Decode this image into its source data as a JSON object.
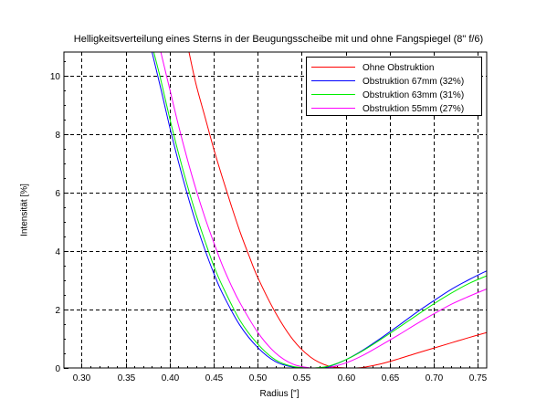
{
  "chart_data": {
    "type": "line",
    "title": "Helligkeitsverteilung eines Sterns in der Beugungsscheibe mit und ohne Fangspiegel (8\" f/6)",
    "xlabel": "Radius [\"]",
    "ylabel": "Intensität [%]",
    "xlim": [
      0.28,
      0.76
    ],
    "ylim": [
      0,
      10.8
    ],
    "xticks": [
      "0.30",
      "0.35",
      "0.40",
      "0.45",
      "0.50",
      "0.55",
      "0.60",
      "0.65",
      "0.70",
      "0.75"
    ],
    "xtick_values": [
      0.3,
      0.35,
      0.4,
      0.45,
      0.5,
      0.55,
      0.6,
      0.65,
      0.7,
      0.75
    ],
    "yticks": [
      "0",
      "2",
      "4",
      "6",
      "8",
      "10"
    ],
    "ytick_values": [
      0,
      2,
      4,
      6,
      8,
      10
    ],
    "grid": true,
    "legend_position": "top-right",
    "series": [
      {
        "name": "Ohne Obstruktion",
        "color": "#ff0000",
        "x": [
          0.422,
          0.43,
          0.44,
          0.45,
          0.46,
          0.47,
          0.48,
          0.49,
          0.5,
          0.52,
          0.54,
          0.56,
          0.58,
          0.6,
          0.61,
          0.62,
          0.64,
          0.66,
          0.68,
          0.7,
          0.72,
          0.74,
          0.76
        ],
        "y": [
          10.8,
          9.7,
          8.6,
          7.5,
          6.5,
          5.55,
          4.65,
          3.85,
          3.1,
          1.9,
          0.97,
          0.37,
          0.07,
          0.0,
          0.0,
          0.02,
          0.14,
          0.31,
          0.5,
          0.68,
          0.86,
          1.04,
          1.21
        ]
      },
      {
        "name": "Obstruktion 67mm (32%)",
        "color": "#0000ff",
        "x": [
          0.38,
          0.39,
          0.4,
          0.41,
          0.42,
          0.43,
          0.44,
          0.45,
          0.46,
          0.48,
          0.5,
          0.52,
          0.54,
          0.56,
          0.57,
          0.58,
          0.6,
          0.62,
          0.64,
          0.66,
          0.68,
          0.7,
          0.72,
          0.74,
          0.76
        ],
        "y": [
          10.8,
          9.55,
          8.25,
          7.05,
          5.95,
          4.95,
          4.05,
          3.25,
          2.55,
          1.45,
          0.7,
          0.22,
          0.03,
          0.0,
          0.0,
          0.04,
          0.28,
          0.62,
          1.02,
          1.45,
          1.89,
          2.3,
          2.69,
          3.02,
          3.32
        ]
      },
      {
        "name": "Obstruktion 63mm (31%)",
        "color": "#00ee00",
        "x": [
          0.382,
          0.39,
          0.4,
          0.41,
          0.42,
          0.43,
          0.44,
          0.45,
          0.46,
          0.48,
          0.5,
          0.52,
          0.54,
          0.56,
          0.565,
          0.58,
          0.6,
          0.62,
          0.64,
          0.66,
          0.68,
          0.7,
          0.72,
          0.74,
          0.76
        ],
        "y": [
          10.8,
          9.85,
          8.55,
          7.35,
          6.25,
          5.25,
          4.35,
          3.5,
          2.8,
          1.62,
          0.82,
          0.28,
          0.05,
          0.0,
          0.0,
          0.06,
          0.28,
          0.6,
          0.98,
          1.38,
          1.79,
          2.19,
          2.56,
          2.89,
          3.15
        ]
      },
      {
        "name": "Obstruktion 55mm (27%)",
        "color": "#ff00ff",
        "x": [
          0.39,
          0.4,
          0.41,
          0.42,
          0.43,
          0.44,
          0.45,
          0.46,
          0.47,
          0.48,
          0.5,
          0.52,
          0.54,
          0.56,
          0.57,
          0.58,
          0.6,
          0.62,
          0.64,
          0.66,
          0.68,
          0.7,
          0.72,
          0.74,
          0.76
        ],
        "y": [
          10.8,
          9.55,
          8.3,
          7.15,
          6.1,
          5.15,
          4.3,
          3.5,
          2.82,
          2.22,
          1.22,
          0.52,
          0.13,
          0.0,
          0.0,
          0.01,
          0.17,
          0.44,
          0.78,
          1.13,
          1.5,
          1.85,
          2.18,
          2.45,
          2.7
        ]
      }
    ]
  }
}
